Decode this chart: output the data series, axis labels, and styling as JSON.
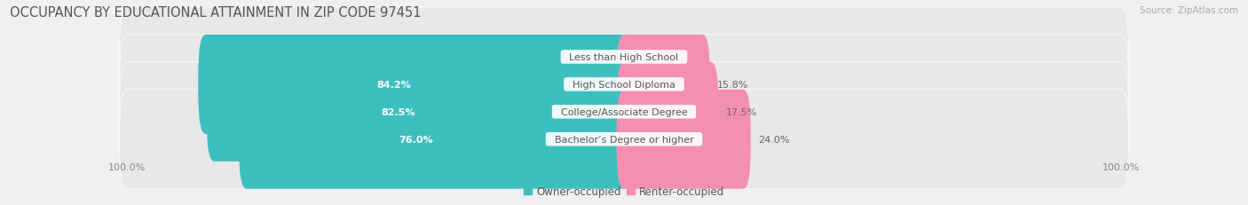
{
  "title": "OCCUPANCY BY EDUCATIONAL ATTAINMENT IN ZIP CODE 97451",
  "source": "Source: ZipAtlas.com",
  "categories": [
    "Less than High School",
    "High School Diploma",
    "College/Associate Degree",
    "Bachelor’s Degree or higher"
  ],
  "owner_values": [
    0.0,
    84.2,
    82.5,
    76.0
  ],
  "renter_values": [
    0.0,
    15.8,
    17.5,
    24.0
  ],
  "owner_color": "#3DBFBF",
  "renter_color": "#F48FB1",
  "background_color": "#f0f0f0",
  "bar_bg_color": "#e8e8e8",
  "bar_height": 0.62,
  "legend_owner": "Owner-occupied",
  "legend_renter": "Renter-occupied",
  "title_fontsize": 10.5,
  "source_fontsize": 7.5,
  "label_fontsize": 8,
  "category_fontsize": 8,
  "owner_label_color": "#ffffff",
  "value_label_color": "#666666",
  "category_label_color": "#555555"
}
